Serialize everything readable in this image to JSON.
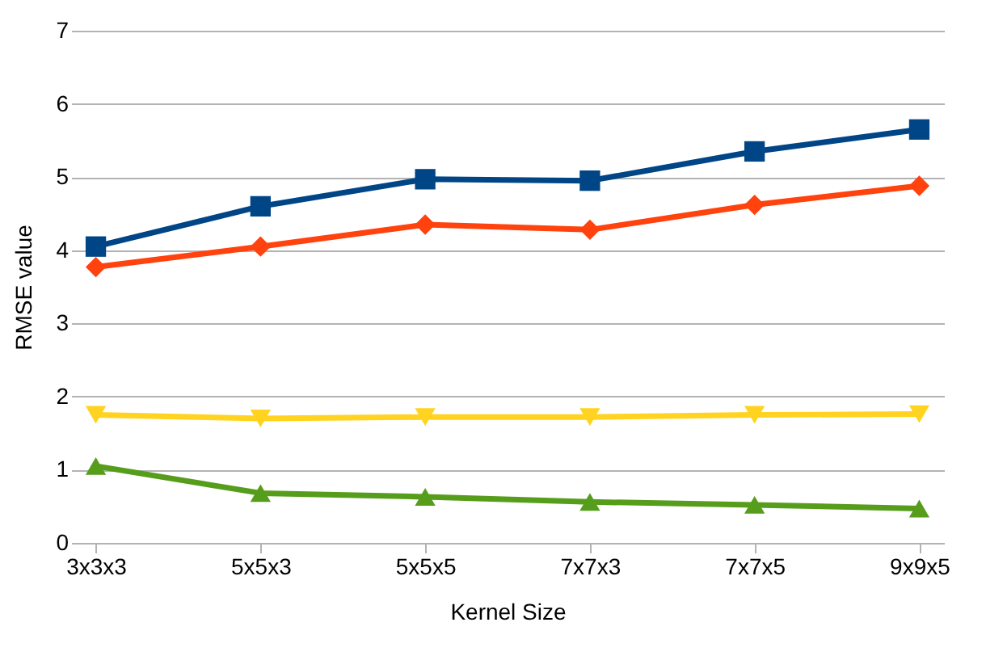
{
  "chart_data": {
    "type": "line",
    "xlabel": "Kernel Size",
    "ylabel": "RMSE value",
    "categories": [
      "3x3x3",
      "5x5x3",
      "5x5x5",
      "7x7x3",
      "7x7x5",
      "9x9x5"
    ],
    "series": [
      {
        "color": "#004586",
        "marker": "square",
        "values": [
          4.05,
          4.6,
          4.97,
          4.95,
          5.35,
          5.65
        ]
      },
      {
        "color": "#ff420e",
        "marker": "diamond",
        "values": [
          3.77,
          4.05,
          4.35,
          4.28,
          4.62,
          4.88
        ]
      },
      {
        "color": "#ffd320",
        "marker": "triangle-down",
        "values": [
          1.75,
          1.7,
          1.72,
          1.72,
          1.75,
          1.76
        ]
      },
      {
        "color": "#579d1c",
        "marker": "triangle-up",
        "values": [
          1.05,
          0.68,
          0.63,
          0.56,
          0.52,
          0.47
        ]
      }
    ],
    "ylim": [
      0,
      7
    ],
    "yticks": [
      0,
      1,
      2,
      3,
      4,
      5,
      6,
      7
    ],
    "grid": "y",
    "line_style": "solid"
  }
}
